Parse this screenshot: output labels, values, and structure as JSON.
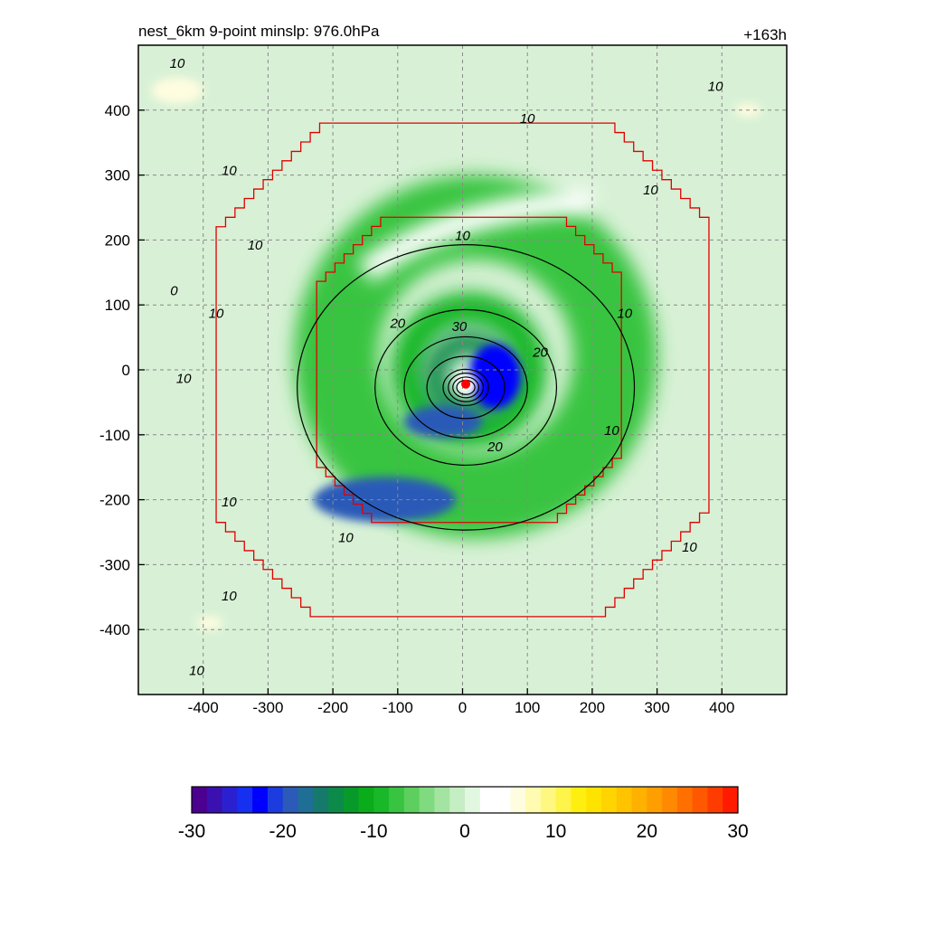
{
  "header": {
    "title": "nest_6km  9-point minslp: 976.0hPa",
    "time": "+163h"
  },
  "chart_data": {
    "type": "heatmap",
    "title": "nest_6km  9-point minslp: 976.0hPa",
    "time_label": "+163h",
    "xlim": [
      -500,
      500
    ],
    "ylim": [
      -500,
      500
    ],
    "x_ticks": [
      -400,
      -300,
      -200,
      -100,
      0,
      100,
      200,
      300,
      400
    ],
    "y_ticks": [
      400,
      300,
      200,
      100,
      0,
      -100,
      -200,
      -300,
      -400
    ],
    "grid": true,
    "storm_center": {
      "x": 5,
      "y": -22
    },
    "colorbar": {
      "min": -30,
      "max": 30,
      "ticks": [
        -30,
        -20,
        -10,
        0,
        10,
        20,
        30
      ],
      "colors": [
        "#4b0090",
        "#3a10b0",
        "#2a20d0",
        "#1530f0",
        "#0000ff",
        "#1c3ce0",
        "#2c5ab8",
        "#1f6e96",
        "#157a6c",
        "#0c8a4a",
        "#079a2a",
        "#0aac1a",
        "#18b828",
        "#38c440",
        "#5ccf5e",
        "#80da80",
        "#a4e4a2",
        "#c6eec4",
        "#e2f7e0",
        "#ffffff",
        "#ffffff",
        "#fffde0",
        "#fffbb0",
        "#fff880",
        "#fff44a",
        "#ffef10",
        "#ffe300",
        "#ffd400",
        "#ffc300",
        "#ffb100",
        "#ff9e00",
        "#ff8900",
        "#ff7000",
        "#ff5800",
        "#ff3c00",
        "#ff1a00"
      ]
    },
    "contour_labels": [
      "10",
      "10",
      "10",
      "10",
      "10",
      "10",
      "10",
      "10",
      "10",
      "10",
      "10",
      "10",
      "10",
      "10",
      "10",
      "10",
      "0",
      "20",
      "20",
      "20",
      "30"
    ],
    "shaded_regions": [
      {
        "shape": "ring",
        "cx": 20,
        "cy": 20,
        "r1": 150,
        "r2": 280,
        "value": -7
      },
      {
        "shape": "ring",
        "cx": 10,
        "cy": 0,
        "r1": 70,
        "r2": 120,
        "value": -9
      },
      {
        "shape": "ring",
        "cx": 10,
        "cy": -10,
        "r1": 35,
        "r2": 70,
        "value": -15
      },
      {
        "shape": "blob",
        "cx": 50,
        "cy": -10,
        "rx": 40,
        "ry": 50,
        "value": -22
      },
      {
        "shape": "blob",
        "cx": -30,
        "cy": -80,
        "rx": 60,
        "ry": 25,
        "value": -20
      },
      {
        "shape": "blob",
        "cx": -120,
        "cy": -200,
        "rx": 110,
        "ry": 35,
        "value": -20
      },
      {
        "shape": "blob",
        "cx": -440,
        "cy": 430,
        "rx": 40,
        "ry": 20,
        "value": 6
      },
      {
        "shape": "blob",
        "cx": -390,
        "cy": -390,
        "rx": 20,
        "ry": 10,
        "value": 6
      },
      {
        "shape": "blob",
        "cx": 440,
        "cy": 400,
        "rx": 20,
        "ry": 10,
        "value": 6
      }
    ],
    "nest_boundaries": [
      {
        "name": "outer",
        "half_width": 380,
        "center": [
          0,
          0
        ]
      },
      {
        "name": "inner",
        "half_width": 235,
        "center": [
          10,
          0
        ]
      }
    ]
  }
}
